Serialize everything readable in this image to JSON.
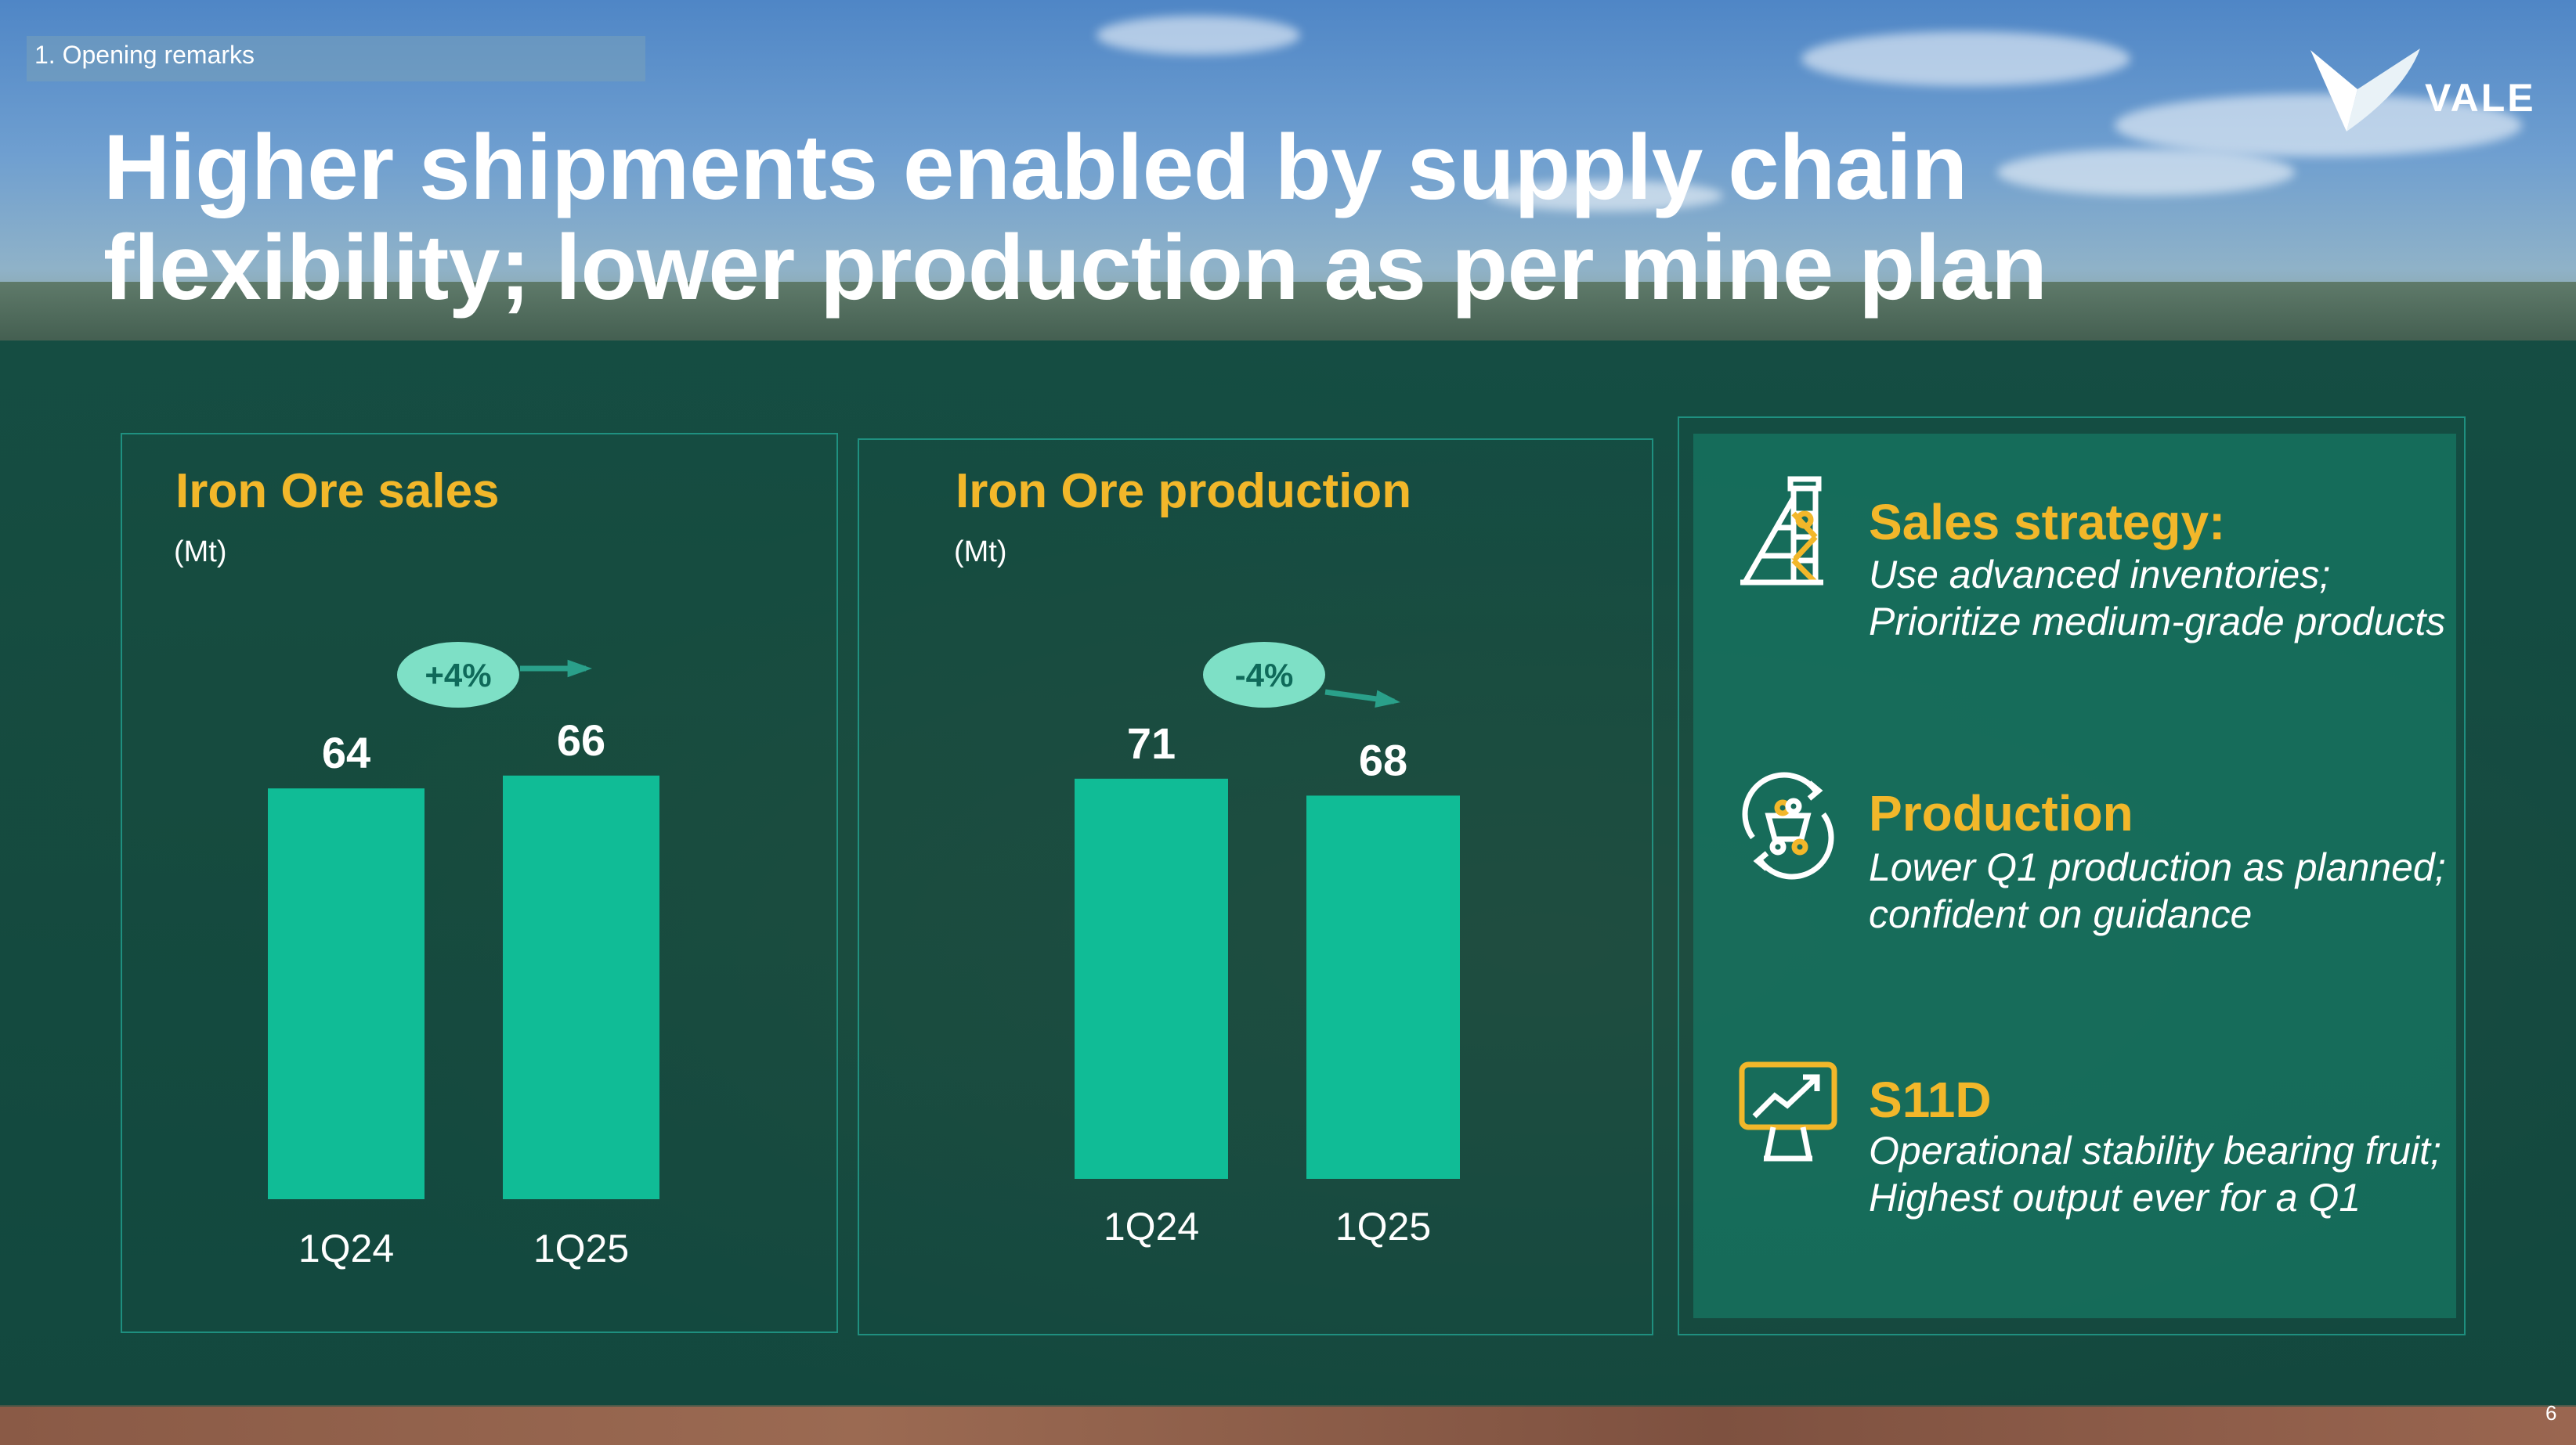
{
  "header": {
    "section_tag": "1. Opening remarks",
    "title": "Higher shipments enabled by supply chain flexibility; lower production as per mine plan",
    "logo_text": "VALE"
  },
  "chart_data": [
    {
      "type": "bar",
      "title": "Iron Ore sales",
      "ylabel": "(Mt)",
      "categories": [
        "1Q24",
        "1Q25"
      ],
      "values": [
        64,
        66
      ],
      "annotation": "+4%",
      "ylim": [
        0,
        80
      ]
    },
    {
      "type": "bar",
      "title": "Iron Ore production",
      "ylabel": "(Mt)",
      "categories": [
        "1Q24",
        "1Q25"
      ],
      "values": [
        71,
        68
      ],
      "annotation": "-4%",
      "ylim": [
        0,
        80
      ]
    }
  ],
  "highlights": [
    {
      "icon": "mine-tower-icon",
      "heading": "Sales strategy:",
      "body": "Use advanced inventories; Prioritize medium-grade products"
    },
    {
      "icon": "ore-cart-cycle-icon",
      "heading": "Production",
      "body": "Lower Q1 production as planned; confident on guidance"
    },
    {
      "icon": "growth-chart-icon",
      "heading": "S11D",
      "body": "Operational stability bearing fruit; Highest output ever for a Q1"
    }
  ],
  "colors": {
    "accent": "#f2b72a",
    "bar": "#10bc96",
    "pill": "#7ee0c6"
  },
  "page_number": "6"
}
